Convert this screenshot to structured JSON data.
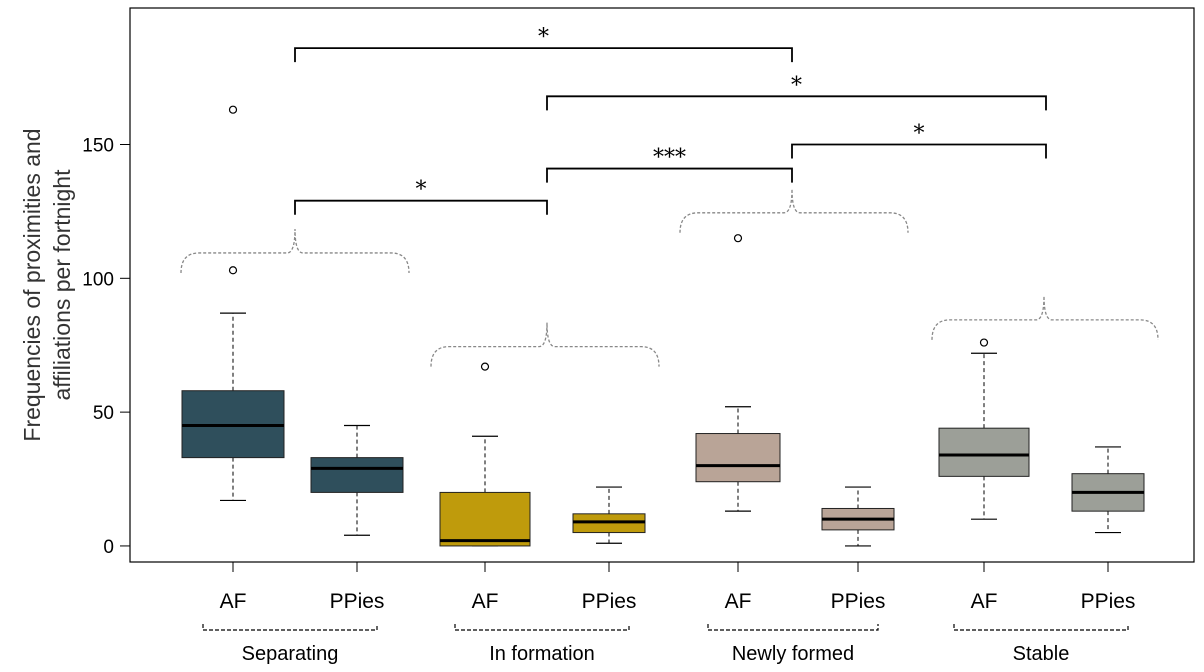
{
  "chart_data": {
    "type": "box",
    "title": "",
    "ylabel": [
      "Frequencies of proximities and",
      "affiliations per fortnight"
    ],
    "xlabel": "",
    "ylim": [
      -6,
      201
    ],
    "yticks": [
      0,
      50,
      100,
      150
    ],
    "ytick_labels": [
      "0",
      "50",
      "100",
      "150"
    ],
    "groups": [
      {
        "name": "Separating",
        "color": "#2f4f5c"
      },
      {
        "name": "In formation",
        "color": "#bf9b0c"
      },
      {
        "name": "Newly formed",
        "color": "#b9a497"
      },
      {
        "name": "Stable",
        "color": "#9c9f98"
      }
    ],
    "boxes": [
      {
        "label": "AF",
        "group": "Separating",
        "color": "#2f4f5c",
        "whisker_low": 17,
        "q1": 33,
        "median": 45,
        "q3": 58,
        "whisker_high": 87,
        "outliers": [
          103,
          163
        ]
      },
      {
        "label": "PPies",
        "group": "Separating",
        "color": "#2f4f5c",
        "whisker_low": 4,
        "q1": 20,
        "median": 29,
        "q3": 33,
        "whisker_high": 45,
        "outliers": []
      },
      {
        "label": "AF",
        "group": "In formation",
        "color": "#bf9b0c",
        "whisker_low": 0,
        "q1": 0,
        "median": 2,
        "q3": 20,
        "whisker_high": 41,
        "outliers": [
          67
        ]
      },
      {
        "label": "PPies",
        "group": "In formation",
        "color": "#bf9b0c",
        "whisker_low": 1,
        "q1": 5,
        "median": 9,
        "q3": 12,
        "whisker_high": 22,
        "outliers": []
      },
      {
        "label": "AF",
        "group": "Newly formed",
        "color": "#b9a497",
        "whisker_low": 13,
        "q1": 24,
        "median": 30,
        "q3": 42,
        "whisker_high": 52,
        "outliers": [
          115
        ]
      },
      {
        "label": "PPies",
        "group": "Newly formed",
        "color": "#b9a497",
        "whisker_low": 0,
        "q1": 6,
        "median": 10,
        "q3": 14,
        "whisker_high": 22,
        "outliers": []
      },
      {
        "label": "AF",
        "group": "Stable",
        "color": "#9c9f98",
        "whisker_low": 10,
        "q1": 26,
        "median": 34,
        "q3": 44,
        "whisker_high": 72,
        "outliers": [
          76
        ]
      },
      {
        "label": "PPies",
        "group": "Stable",
        "color": "#9c9f98",
        "whisker_low": 5,
        "q1": 13,
        "median": 20,
        "q3": 27,
        "whisker_high": 37,
        "outliers": []
      }
    ],
    "significance": [
      {
        "from": "Separating",
        "to": "Newly formed",
        "label": "*",
        "y": 186
      },
      {
        "from": "In formation",
        "to": "Stable",
        "label": "*",
        "y": 168
      },
      {
        "from": "In formation",
        "to": "Newly formed",
        "label": "***",
        "y": 141
      },
      {
        "from": "Newly formed",
        "to": "Stable",
        "label": "*",
        "y": 150
      },
      {
        "from": "Separating",
        "to": "In formation",
        "label": "*",
        "y": 129
      }
    ],
    "grid": false,
    "legend": "none"
  }
}
